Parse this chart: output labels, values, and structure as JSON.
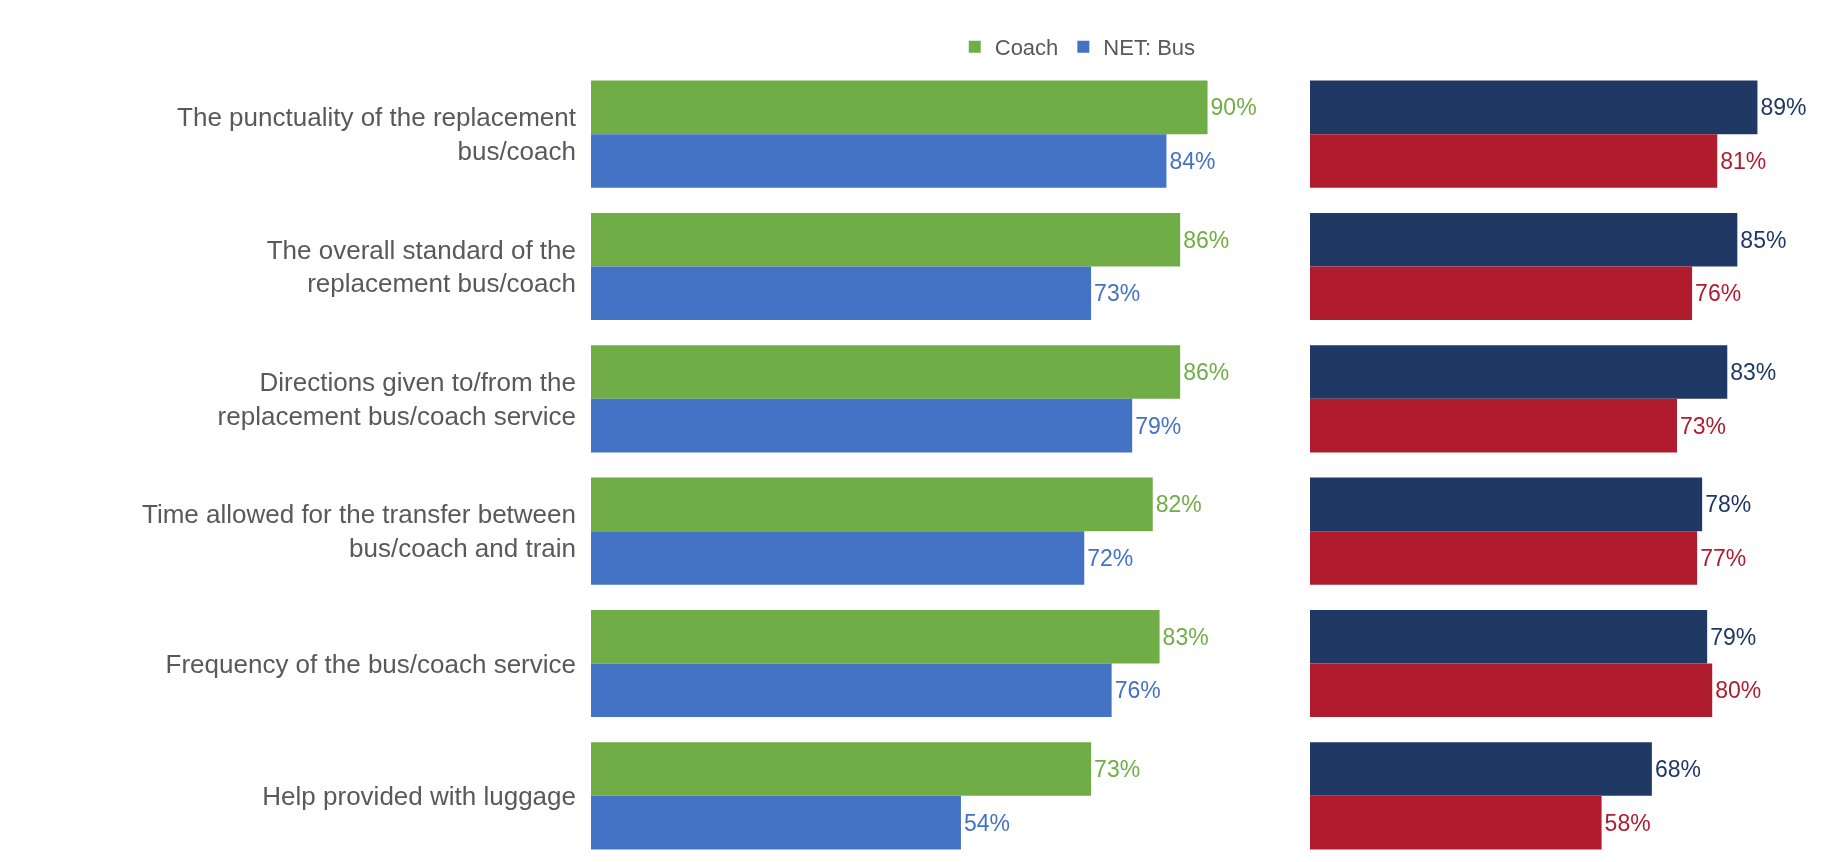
{
  "chart_data": [
    {
      "type": "bar",
      "orientation": "horizontal",
      "categories": [
        "The punctuality of the replacement bus/coach",
        "The overall standard of the replacement bus/coach",
        "Directions given to/from the replacement bus/coach service",
        "Time allowed for the transfer between bus/coach and train",
        "Frequency of the bus/coach service",
        "Help provided with luggage"
      ],
      "series": [
        {
          "name": "Coach",
          "color": "#70ad47",
          "values": [
            90,
            86,
            86,
            82,
            83,
            73
          ],
          "value_labels": [
            "90%",
            "86%",
            "86%",
            "82%",
            "83%",
            "73%"
          ]
        },
        {
          "name": "NET: Bus",
          "color": "#4472c4",
          "values": [
            84,
            73,
            79,
            72,
            76,
            54
          ],
          "value_labels": [
            "84%",
            "73%",
            "79%",
            "72%",
            "76%",
            "54%"
          ]
        }
      ],
      "legend": "top",
      "grid": false,
      "tick_labels": "y"
    },
    {
      "type": "bar",
      "orientation": "horizontal",
      "categories": [
        null,
        null,
        null,
        null,
        null,
        null
      ],
      "series": [
        {
          "color": "#1f3864",
          "values": [
            89,
            85,
            83,
            78,
            79,
            68
          ],
          "value_labels": [
            "89%",
            "85%",
            "83%",
            "78%",
            "79%",
            "68%"
          ]
        },
        {
          "color": "#b01c2e",
          "values": [
            81,
            76,
            73,
            77,
            80,
            58
          ],
          "value_labels": [
            "81%",
            "76%",
            "73%",
            "77%",
            "80%",
            "58%"
          ]
        }
      ],
      "legend": false,
      "grid": false,
      "tick_labels": false
    }
  ]
}
